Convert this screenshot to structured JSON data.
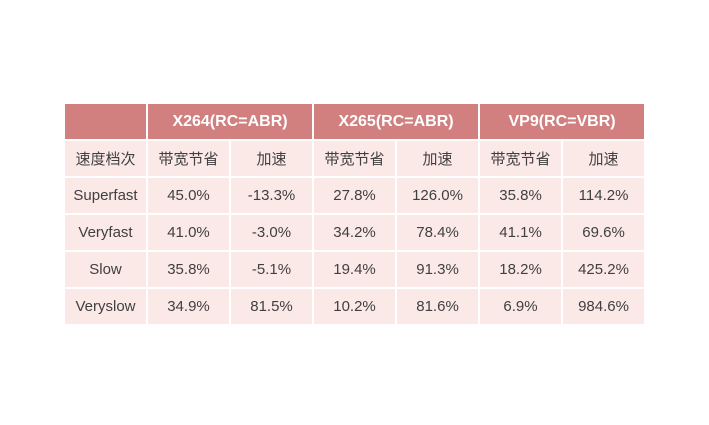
{
  "table": {
    "groups": [
      "",
      "X264(RC=ABR)",
      "X265(RC=ABR)",
      "VP9(RC=VBR)"
    ],
    "subheaders": [
      "速度档次",
      "带宽节省",
      "加速",
      "带宽节省",
      "加速",
      "带宽节省",
      "加速"
    ],
    "rows": [
      [
        "Superfast",
        "45.0%",
        "-13.3%",
        "27.8%",
        "126.0%",
        "35.8%",
        "114.2%"
      ],
      [
        "Veryfast",
        "41.0%",
        "-3.0%",
        "34.2%",
        "78.4%",
        "41.1%",
        "69.6%"
      ],
      [
        "Slow",
        "35.8%",
        "-5.1%",
        "19.4%",
        "91.3%",
        "18.2%",
        "425.2%"
      ],
      [
        "Veryslow",
        "34.9%",
        "81.5%",
        "10.2%",
        "81.6%",
        "6.9%",
        "984.6%"
      ]
    ]
  },
  "colors": {
    "header": "#d17f7f",
    "body": "#fbe9e7",
    "text": "#404040"
  }
}
